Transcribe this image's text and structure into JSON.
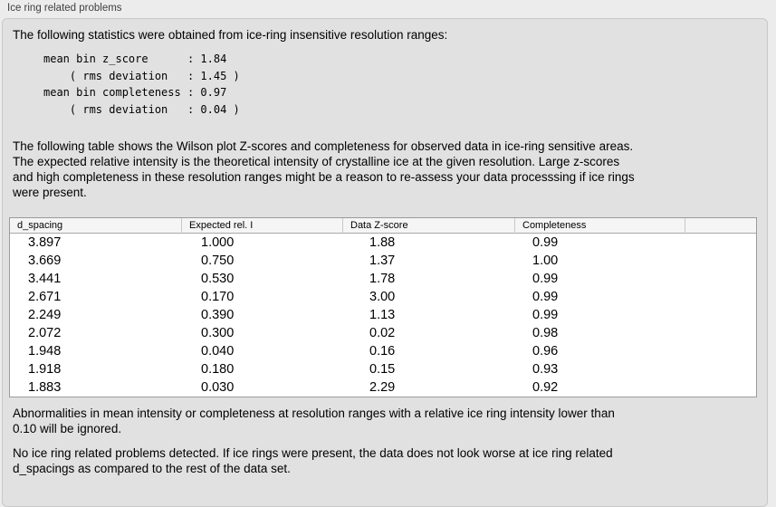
{
  "panel": {
    "title": "Ice ring related problems",
    "intro": "The following statistics were obtained from ice-ring insensitive resolution ranges:",
    "stats_block": "mean bin z_score      : 1.84\n    ( rms deviation   : 1.45 )\nmean bin completeness : 0.97\n    ( rms deviation   : 0.04 )",
    "description": "The following table shows the Wilson plot Z-scores and completeness for observed data in ice-ring sensitive areas.\nThe expected relative intensity is the theoretical intensity of crystalline ice at the given resolution. Large z-scores\nand high completeness in these resolution ranges might be a reason to re-assess your data processsing if ice rings\nwere present.",
    "ignore_note": "Abnormalities in mean intensity or completeness at resolution ranges with a relative ice ring intensity lower than\n0.10 will be ignored.",
    "conclusion": "No ice ring related problems detected. If ice rings were present, the data does not look worse at ice ring related\nd_spacings as compared to the rest of the data set."
  },
  "table": {
    "columns": [
      "d_spacing",
      "Expected rel. I",
      "Data Z-score",
      "Completeness"
    ],
    "rows": [
      [
        "3.897",
        "1.000",
        "1.88",
        "0.99"
      ],
      [
        "3.669",
        "0.750",
        "1.37",
        "1.00"
      ],
      [
        "3.441",
        "0.530",
        "1.78",
        "0.99"
      ],
      [
        "2.671",
        "0.170",
        "3.00",
        "0.99"
      ],
      [
        "2.249",
        "0.390",
        "1.13",
        "0.99"
      ],
      [
        "2.072",
        "0.300",
        "0.02",
        "0.98"
      ],
      [
        "1.948",
        "0.040",
        "0.16",
        "0.96"
      ],
      [
        "1.918",
        "0.180",
        "0.15",
        "0.93"
      ],
      [
        "1.883",
        "0.030",
        "2.29",
        "0.92"
      ]
    ]
  },
  "colors": {
    "page_bg": "#ececec",
    "panel_bg": "#e1e1e1",
    "panel_border": "#c8c8c8",
    "table_bg": "#ffffff",
    "table_border": "#9b9b9b",
    "table_header_bg": "#f5f5f5",
    "text": "#000000",
    "title_text": "#3f3f3f"
  }
}
